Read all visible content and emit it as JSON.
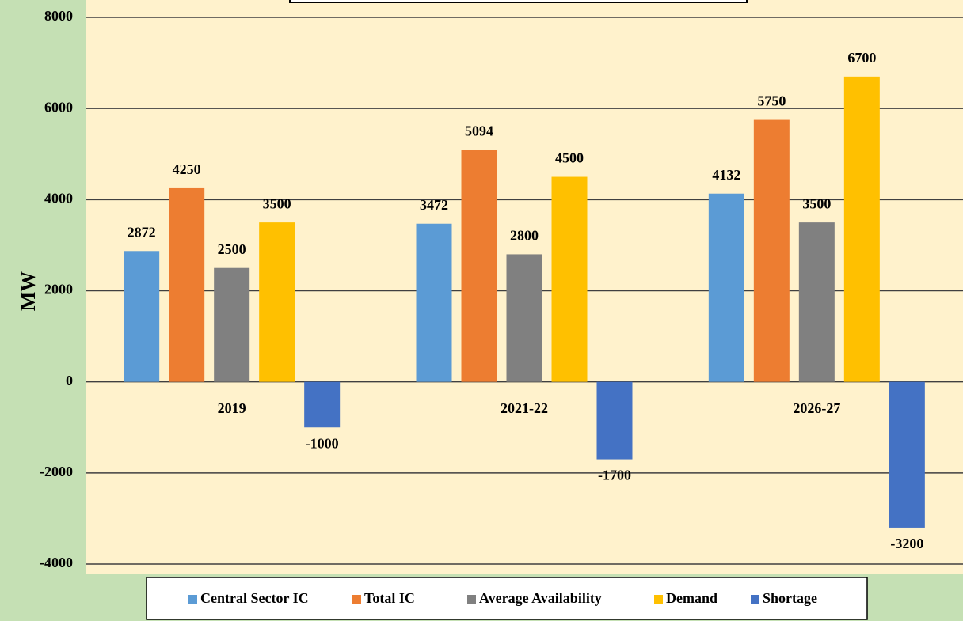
{
  "chart_data": {
    "type": "bar",
    "y_label": "MW",
    "categories": [
      "2019",
      "2021-22",
      "2026-27"
    ],
    "series": [
      {
        "name": "Central Sector IC",
        "color": "#5b9bd5",
        "values": [
          2872,
          3472,
          4132
        ]
      },
      {
        "name": "Total IC",
        "color": "#ed7d31",
        "values": [
          4250,
          5094,
          5750
        ]
      },
      {
        "name": "Average Availability",
        "color": "#808080",
        "values": [
          2500,
          2800,
          3500
        ]
      },
      {
        "name": "Demand",
        "color": "#ffc000",
        "values": [
          3500,
          4500,
          6700
        ]
      },
      {
        "name": "Shortage",
        "color": "#4472c4",
        "values": [
          -1000,
          -1700,
          -3200
        ]
      }
    ],
    "ylim": [
      -4000,
      8000
    ],
    "yticks": [
      -4000,
      -2000,
      0,
      2000,
      4000,
      6000,
      8000
    ],
    "grid": true,
    "legend": "bottom"
  }
}
